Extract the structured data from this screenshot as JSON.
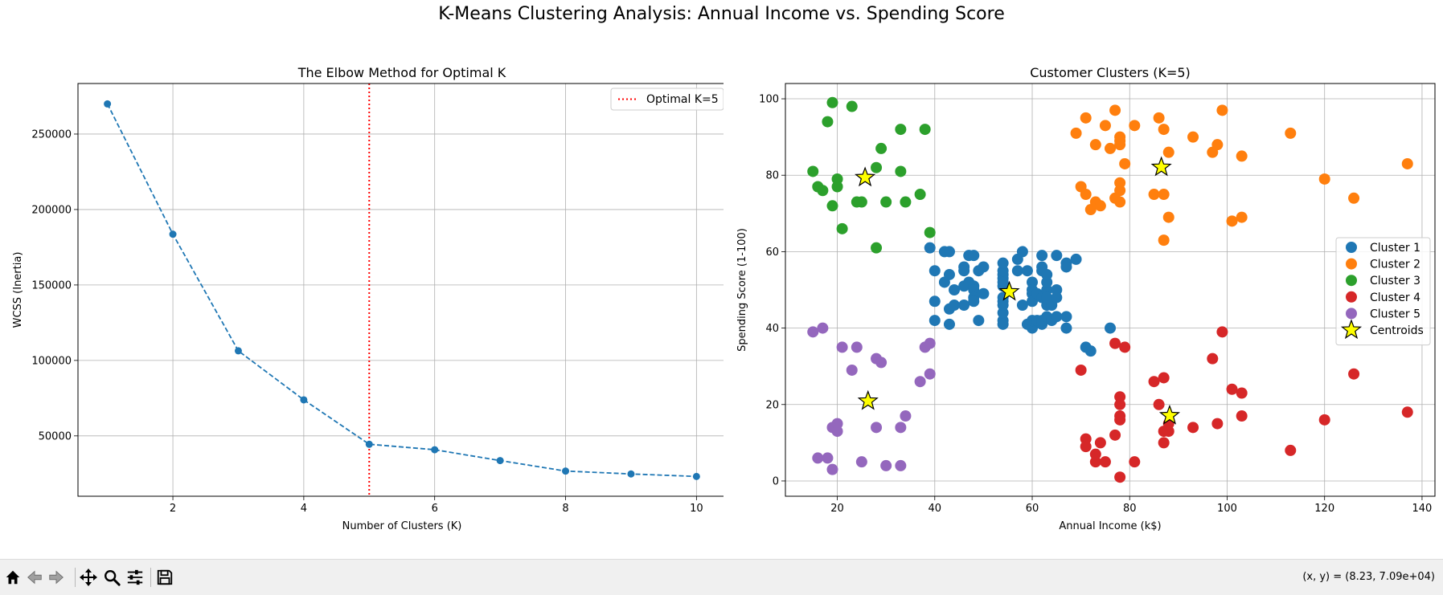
{
  "figure": {
    "suptitle": "K-Means Clustering Analysis: Annual Income vs. Spending Score"
  },
  "chart_data": [
    {
      "type": "line",
      "title": "The Elbow Method for Optimal K",
      "xlabel": "Number of Clusters (K)",
      "ylabel": "WCSS (Inertia)",
      "x": [
        1,
        2,
        3,
        4,
        5,
        6,
        7,
        8,
        9,
        10
      ],
      "values": [
        269981,
        183653,
        106348,
        73880,
        44448,
        40826,
        33642,
        26686,
        24766,
        23103
      ],
      "xlim": [
        0.55,
        10.45
      ],
      "ylim": [
        10000,
        283500
      ],
      "xticks": [
        2,
        4,
        6,
        8,
        10
      ],
      "yticks": [
        50000,
        100000,
        150000,
        200000,
        250000
      ],
      "grid": true,
      "line_color": "#1f77b4",
      "line_style": "dashed",
      "vline": {
        "x": 5,
        "color": "#ff0000",
        "style": "dotted",
        "label": "Optimal K=5"
      },
      "legend": {
        "position": "upper right",
        "entries": [
          "Optimal K=5"
        ]
      }
    },
    {
      "type": "scatter",
      "title": "Customer Clusters (K=5)",
      "xlabel": "Annual Income (k$)",
      "ylabel": "Spending Score (1-100)",
      "xlim": [
        9.35,
        142.65
      ],
      "ylim": [
        -4,
        104
      ],
      "xticks": [
        20,
        40,
        60,
        80,
        100,
        120,
        140
      ],
      "yticks": [
        0,
        20,
        40,
        60,
        80,
        100
      ],
      "grid": true,
      "legend": {
        "position": "center right"
      },
      "series": [
        {
          "name": "Cluster 1",
          "color": "#1f77b4",
          "points": [
            [
              39,
              61
            ],
            [
              40,
              55
            ],
            [
              40,
              47
            ],
            [
              40,
              42
            ],
            [
              42,
              52
            ],
            [
              42,
              60
            ],
            [
              43,
              54
            ],
            [
              43,
              60
            ],
            [
              43,
              45
            ],
            [
              43,
              41
            ],
            [
              44,
              50
            ],
            [
              44,
              46
            ],
            [
              46,
              51
            ],
            [
              46,
              46
            ],
            [
              46,
              56
            ],
            [
              46,
              55
            ],
            [
              47,
              52
            ],
            [
              47,
              59
            ],
            [
              48,
              51
            ],
            [
              48,
              59
            ],
            [
              48,
              50
            ],
            [
              48,
              48
            ],
            [
              48,
              47
            ],
            [
              49,
              55
            ],
            [
              49,
              42
            ],
            [
              50,
              49
            ],
            [
              50,
              56
            ],
            [
              54,
              47
            ],
            [
              54,
              54
            ],
            [
              54,
              53
            ],
            [
              54,
              48
            ],
            [
              54,
              52
            ],
            [
              54,
              42
            ],
            [
              54,
              51
            ],
            [
              54,
              55
            ],
            [
              54,
              41
            ],
            [
              54,
              44
            ],
            [
              54,
              57
            ],
            [
              54,
              46
            ],
            [
              57,
              58
            ],
            [
              57,
              55
            ],
            [
              58,
              60
            ],
            [
              58,
              46
            ],
            [
              59,
              55
            ],
            [
              59,
              41
            ],
            [
              60,
              49
            ],
            [
              60,
              40
            ],
            [
              60,
              42
            ],
            [
              60,
              52
            ],
            [
              60,
              47
            ],
            [
              60,
              50
            ],
            [
              61,
              42
            ],
            [
              61,
              49
            ],
            [
              62,
              41
            ],
            [
              62,
              48
            ],
            [
              62,
              59
            ],
            [
              62,
              55
            ],
            [
              62,
              56
            ],
            [
              62,
              42
            ],
            [
              63,
              50
            ],
            [
              63,
              46
            ],
            [
              63,
              43
            ],
            [
              63,
              48
            ],
            [
              63,
              52
            ],
            [
              63,
              54
            ],
            [
              64,
              42
            ],
            [
              64,
              46
            ],
            [
              65,
              48
            ],
            [
              65,
              50
            ],
            [
              65,
              43
            ],
            [
              65,
              59
            ],
            [
              67,
              43
            ],
            [
              67,
              57
            ],
            [
              67,
              56
            ],
            [
              67,
              40
            ],
            [
              69,
              58
            ],
            [
              71,
              35
            ],
            [
              72,
              34
            ],
            [
              76,
              40
            ]
          ]
        },
        {
          "name": "Cluster 2",
          "color": "#ff7f0e",
          "points": [
            [
              69,
              91
            ],
            [
              70,
              77
            ],
            [
              71,
              95
            ],
            [
              71,
              75
            ],
            [
              72,
              71
            ],
            [
              73,
              88
            ],
            [
              73,
              73
            ],
            [
              74,
              72
            ],
            [
              75,
              93
            ],
            [
              76,
              87
            ],
            [
              77,
              97
            ],
            [
              77,
              74
            ],
            [
              78,
              90
            ],
            [
              78,
              88
            ],
            [
              78,
              76
            ],
            [
              78,
              89
            ],
            [
              78,
              78
            ],
            [
              78,
              73
            ],
            [
              79,
              83
            ],
            [
              81,
              93
            ],
            [
              85,
              75
            ],
            [
              86,
              95
            ],
            [
              87,
              63
            ],
            [
              87,
              75
            ],
            [
              87,
              92
            ],
            [
              88,
              69
            ],
            [
              88,
              86
            ],
            [
              93,
              90
            ],
            [
              97,
              86
            ],
            [
              98,
              88
            ],
            [
              99,
              97
            ],
            [
              101,
              68
            ],
            [
              103,
              85
            ],
            [
              103,
              69
            ],
            [
              113,
              91
            ],
            [
              120,
              79
            ],
            [
              126,
              74
            ],
            [
              137,
              83
            ]
          ]
        },
        {
          "name": "Cluster 3",
          "color": "#2ca02c",
          "points": [
            [
              15,
              81
            ],
            [
              16,
              77
            ],
            [
              17,
              76
            ],
            [
              18,
              94
            ],
            [
              19,
              72
            ],
            [
              19,
              99
            ],
            [
              20,
              77
            ],
            [
              20,
              79
            ],
            [
              21,
              66
            ],
            [
              23,
              98
            ],
            [
              24,
              73
            ],
            [
              25,
              73
            ],
            [
              28,
              82
            ],
            [
              28,
              61
            ],
            [
              29,
              87
            ],
            [
              30,
              73
            ],
            [
              33,
              92
            ],
            [
              33,
              81
            ],
            [
              34,
              73
            ],
            [
              37,
              75
            ],
            [
              38,
              92
            ],
            [
              39,
              65
            ]
          ]
        },
        {
          "name": "Cluster 4",
          "color": "#d62728",
          "points": [
            [
              70,
              29
            ],
            [
              71,
              11
            ],
            [
              71,
              9
            ],
            [
              73,
              5
            ],
            [
              73,
              7
            ],
            [
              74,
              10
            ],
            [
              75,
              5
            ],
            [
              77,
              12
            ],
            [
              77,
              36
            ],
            [
              78,
              22
            ],
            [
              78,
              17
            ],
            [
              78,
              20
            ],
            [
              78,
              16
            ],
            [
              78,
              1
            ],
            [
              79,
              35
            ],
            [
              81,
              5
            ],
            [
              85,
              26
            ],
            [
              86,
              20
            ],
            [
              87,
              27
            ],
            [
              87,
              13
            ],
            [
              87,
              10
            ],
            [
              88,
              13
            ],
            [
              88,
              15
            ],
            [
              93,
              14
            ],
            [
              97,
              32
            ],
            [
              98,
              15
            ],
            [
              99,
              39
            ],
            [
              101,
              24
            ],
            [
              103,
              17
            ],
            [
              103,
              23
            ],
            [
              113,
              8
            ],
            [
              120,
              16
            ],
            [
              126,
              28
            ],
            [
              137,
              18
            ]
          ]
        },
        {
          "name": "Cluster 5",
          "color": "#9467bd",
          "points": [
            [
              15,
              39
            ],
            [
              16,
              6
            ],
            [
              17,
              40
            ],
            [
              18,
              6
            ],
            [
              19,
              3
            ],
            [
              19,
              14
            ],
            [
              20,
              15
            ],
            [
              20,
              13
            ],
            [
              21,
              35
            ],
            [
              23,
              29
            ],
            [
              24,
              35
            ],
            [
              25,
              5
            ],
            [
              28,
              14
            ],
            [
              28,
              32
            ],
            [
              29,
              31
            ],
            [
              30,
              4
            ],
            [
              33,
              4
            ],
            [
              33,
              14
            ],
            [
              34,
              17
            ],
            [
              37,
              26
            ],
            [
              38,
              35
            ],
            [
              39,
              36
            ],
            [
              39,
              28
            ]
          ]
        },
        {
          "name": "Centroids",
          "color": "#ffff00",
          "marker": "star",
          "points": [
            [
              55.3,
              49.5
            ],
            [
              86.5,
              82.1
            ],
            [
              25.7,
              79.4
            ],
            [
              88.2,
              17.1
            ],
            [
              26.3,
              20.9
            ]
          ]
        }
      ]
    }
  ],
  "toolbar": {
    "buttons": [
      "home-icon",
      "back-icon",
      "forward-icon",
      "pan-icon",
      "zoom-icon",
      "configure-icon",
      "save-icon"
    ],
    "coords": "(x, y) = (8.23, 7.09e+04)"
  }
}
